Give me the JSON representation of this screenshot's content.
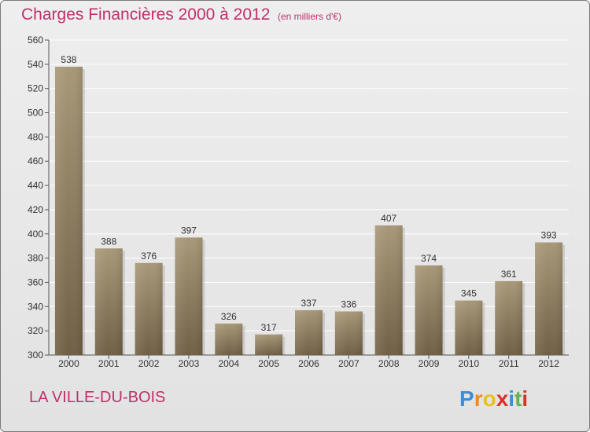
{
  "header": {
    "title": "Charges Financières 2000 à 2012",
    "subtitle": "(en milliers d'€)"
  },
  "footer": {
    "commune": "LA VILLE-DU-BOIS",
    "logo_text": "Proxiti"
  },
  "colors": {
    "title": "#c0306a",
    "bar_light": "#a89878",
    "bar_dark": "#6f5f45",
    "grid": "#ffffff",
    "axis": "#555555"
  },
  "chart_data": {
    "type": "bar",
    "title": "Charges Financières 2000 à 2012",
    "subtitle": "(en milliers d'€)",
    "xlabel": "",
    "ylabel": "",
    "categories": [
      "2000",
      "2001",
      "2002",
      "2003",
      "2004",
      "2005",
      "2006",
      "2007",
      "2008",
      "2009",
      "2010",
      "2011",
      "2012"
    ],
    "values": [
      538,
      388,
      376,
      397,
      326,
      317,
      337,
      336,
      407,
      374,
      345,
      361,
      393
    ],
    "ylim": [
      300,
      560
    ],
    "yticks": [
      300,
      320,
      340,
      360,
      380,
      400,
      420,
      440,
      460,
      480,
      500,
      520,
      540,
      560
    ],
    "grid": true,
    "legend": "none"
  }
}
